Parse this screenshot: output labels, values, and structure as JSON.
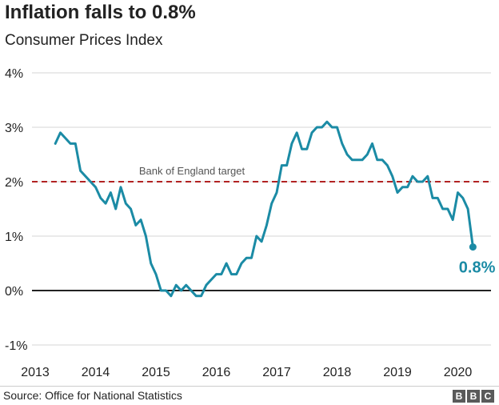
{
  "header": {
    "title": "Inflation falls to 0.8%",
    "subtitle": "Consumer Prices Index"
  },
  "footer": {
    "source": "Source: Office for National Statistics",
    "logo_text": "BBC"
  },
  "colors": {
    "series": "#1b8ba5",
    "target": "#b22222",
    "zero_line": "#222222",
    "grid": "#d5d5d5"
  },
  "chart_data": {
    "type": "line",
    "title": "Inflation falls to 0.8%",
    "subtitle": "Consumer Prices Index",
    "x_ticks": [
      "2013",
      "2014",
      "2015",
      "2016",
      "2017",
      "2018",
      "2019",
      "2020"
    ],
    "y_ticks": [
      "4%",
      "3%",
      "2%",
      "1%",
      "0%",
      "-1%"
    ],
    "ylim": [
      -1,
      4
    ],
    "xlim": [
      "2013-01",
      "2020-12"
    ],
    "grid": true,
    "reference_line": {
      "label": "Bank of England target",
      "value": 2
    },
    "end_label": "0.8%",
    "series": [
      {
        "x": [
          "2013-05",
          "2013-06",
          "2013-07",
          "2013-08",
          "2013-09",
          "2013-10",
          "2013-11",
          "2013-12",
          "2014-01",
          "2014-02",
          "2014-03",
          "2014-04",
          "2014-05",
          "2014-06",
          "2014-07",
          "2014-08",
          "2014-09",
          "2014-10",
          "2014-11",
          "2014-12",
          "2015-01",
          "2015-02",
          "2015-03",
          "2015-04",
          "2015-05",
          "2015-06",
          "2015-07",
          "2015-08",
          "2015-09",
          "2015-10",
          "2015-11",
          "2015-12",
          "2016-01",
          "2016-02",
          "2016-03",
          "2016-04",
          "2016-05",
          "2016-06",
          "2016-07",
          "2016-08",
          "2016-09",
          "2016-10",
          "2016-11",
          "2016-12",
          "2017-01",
          "2017-02",
          "2017-03",
          "2017-04",
          "2017-05",
          "2017-06",
          "2017-07",
          "2017-08",
          "2017-09",
          "2017-10",
          "2017-11",
          "2017-12",
          "2018-01",
          "2018-02",
          "2018-03",
          "2018-04",
          "2018-05",
          "2018-06",
          "2018-07",
          "2018-08",
          "2018-09",
          "2018-10",
          "2018-11",
          "2018-12",
          "2019-01",
          "2019-02",
          "2019-03",
          "2019-04",
          "2019-05",
          "2019-06",
          "2019-07",
          "2019-08",
          "2019-09",
          "2019-10",
          "2019-11",
          "2019-12",
          "2020-01",
          "2020-02",
          "2020-03",
          "2020-04"
        ],
        "values": [
          2.7,
          2.9,
          2.8,
          2.7,
          2.7,
          2.2,
          2.1,
          2.0,
          1.9,
          1.7,
          1.6,
          1.8,
          1.5,
          1.9,
          1.6,
          1.5,
          1.2,
          1.3,
          1.0,
          0.5,
          0.3,
          0.0,
          0.0,
          -0.1,
          0.1,
          0.0,
          0.1,
          0.0,
          -0.1,
          -0.1,
          0.1,
          0.2,
          0.3,
          0.3,
          0.5,
          0.3,
          0.3,
          0.5,
          0.6,
          0.6,
          1.0,
          0.9,
          1.2,
          1.6,
          1.8,
          2.3,
          2.3,
          2.7,
          2.9,
          2.6,
          2.6,
          2.9,
          3.0,
          3.0,
          3.1,
          3.0,
          3.0,
          2.7,
          2.5,
          2.4,
          2.4,
          2.4,
          2.5,
          2.7,
          2.4,
          2.4,
          2.3,
          2.1,
          1.8,
          1.9,
          1.9,
          2.1,
          2.0,
          2.0,
          2.1,
          1.7,
          1.7,
          1.5,
          1.5,
          1.3,
          1.8,
          1.7,
          1.5,
          0.8
        ]
      }
    ]
  }
}
